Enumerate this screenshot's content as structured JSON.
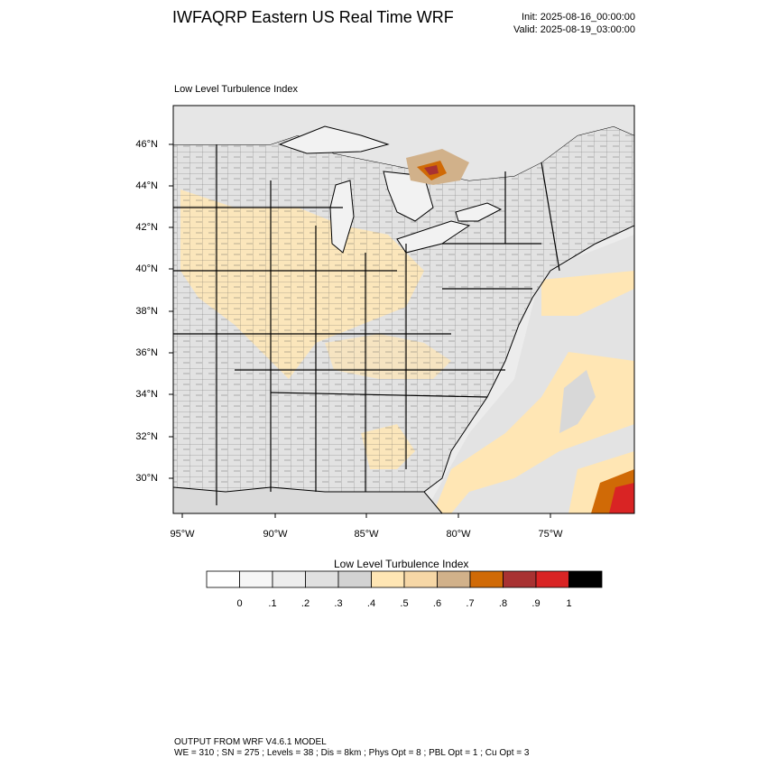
{
  "header": {
    "title": "IWFAQRP Eastern US Real Time WRF",
    "init": "Init: 2025-08-16_00:00:00",
    "valid": "Valid: 2025-08-19_03:00:00"
  },
  "panel": {
    "title": "Low Level Turbulence Index"
  },
  "axes": {
    "lat_labels": [
      "46°N",
      "44°N",
      "42°N",
      "40°N",
      "38°N",
      "36°N",
      "34°N",
      "32°N",
      "30°N"
    ],
    "lon_labels": [
      "95°W",
      "90°W",
      "85°W",
      "80°W",
      "75°W"
    ]
  },
  "colorbar": {
    "title": "Low Level Turbulence Index",
    "labels": [
      "0",
      ".1",
      ".2",
      ".3",
      ".4",
      ".5",
      ".6",
      ".7",
      ".8",
      ".9",
      "1"
    ],
    "colors": [
      "#ffffff",
      "#f6f6f6",
      "#ededed",
      "#e0e0e0",
      "#d3d3d3",
      "#ffe6b4",
      "#f6d7a6",
      "#d1b18a",
      "#d06a06",
      "#a83232",
      "#d92424",
      "#000000"
    ]
  },
  "footer": {
    "line1": "OUTPUT FROM WRF V4.6.1 MODEL",
    "line2": "WE = 310 ; SN = 275 ; Levels = 38 ; Dis = 8km ; Phys Opt = 8 ; PBL Opt = 1 ; Cu Opt = 3"
  },
  "map_colors": {
    "land_base": "#e2e2e2",
    "water": "#f4f4f4",
    "turbulence_low": "#ffe6b4",
    "turbulence_mid": "#d1b18a",
    "turbulence_high": "#d06a06",
    "turbulence_max": "#d92424"
  }
}
